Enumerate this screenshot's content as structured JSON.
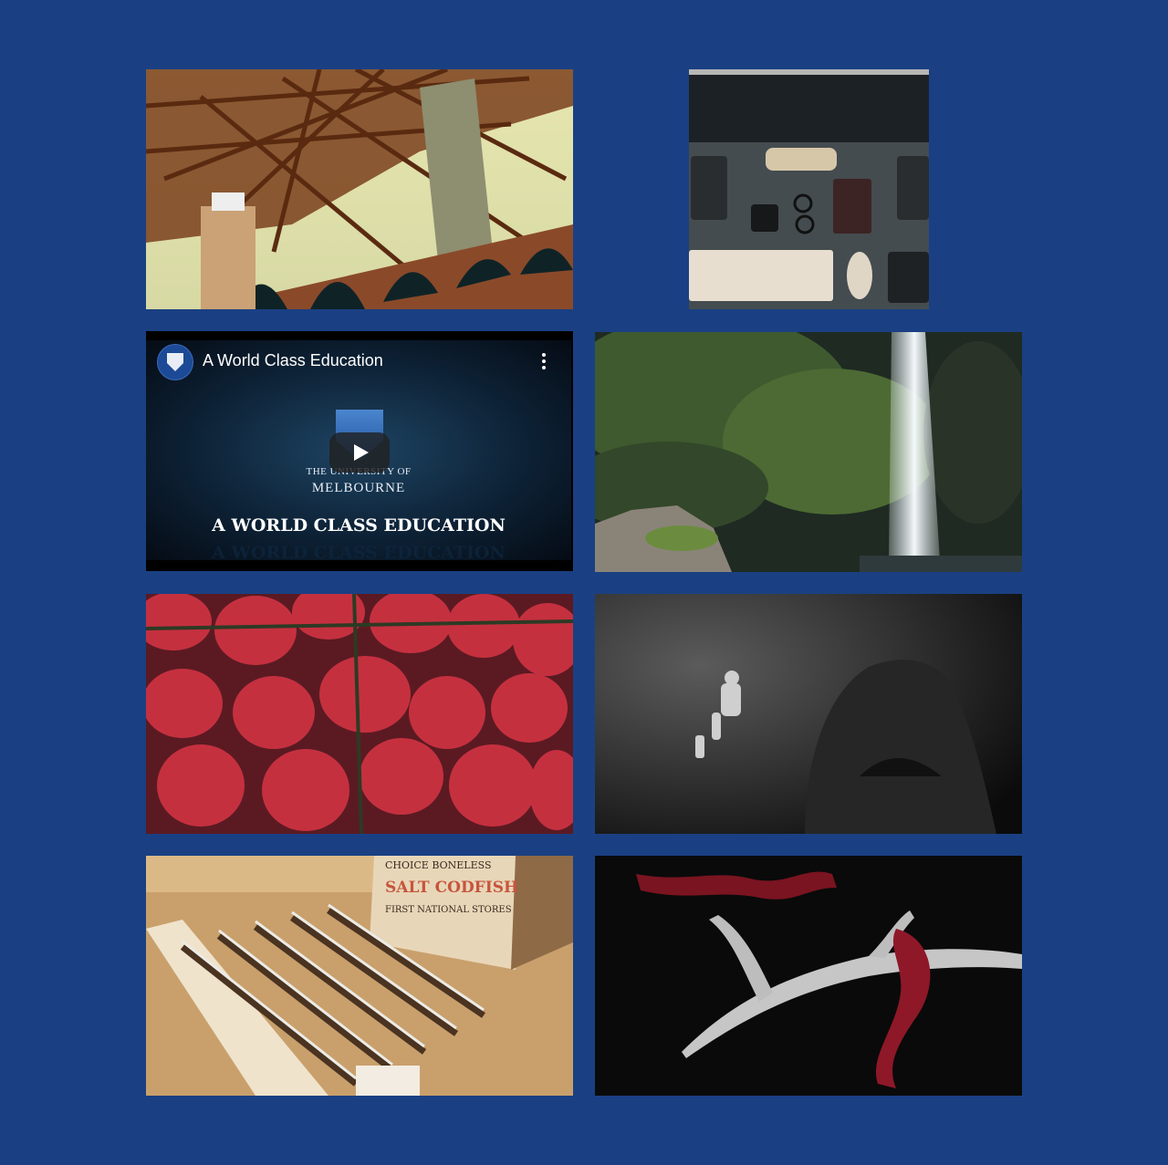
{
  "gallery": {
    "tiles": [
      {
        "subject": "bridge"
      },
      {
        "subject": "desk-setup"
      },
      {
        "subject": "video"
      },
      {
        "subject": "waterfall"
      },
      {
        "subject": "strawberries"
      },
      {
        "subject": "scuba-diver"
      },
      {
        "subject": "rulers-and-crate"
      },
      {
        "subject": "antler-with-velvet"
      }
    ]
  },
  "video": {
    "title": "A World Class Education",
    "logo_line1": "THE UNIVERSITY OF",
    "logo_line2": "MELBOURNE",
    "headline": "A WORLD CLASS EDUCATION",
    "headline_reflection": "A WORLD CLASS EDUCATION"
  },
  "crate": {
    "line1": "CHOICE BONELESS",
    "line2": "SALT CODFISH",
    "line3": "FIRST NATIONAL STORES"
  },
  "colors": {
    "background": "#1a4083",
    "play_button": "#212121"
  }
}
